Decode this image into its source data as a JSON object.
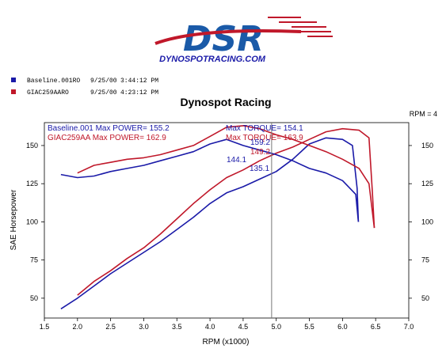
{
  "logo": {
    "text": "DSR",
    "url_text": "DYNOSPOTRACING.COM"
  },
  "legend": [
    {
      "name": "Baseline.001RO",
      "date": "9/25/00",
      "time": "3:44:12 PM",
      "color": "#1a1aa8"
    },
    {
      "name": "GIAC259AARO",
      "date": "9/25/00",
      "time": "4:23:12 PM",
      "color": "#c0182a"
    }
  ],
  "colors": {
    "blue": "#1a1aa8",
    "red": "#c0182a",
    "logo_blue": "#1a5aa8",
    "logo_red": "#c0182a"
  },
  "chart_data": {
    "type": "line",
    "title": "Dynospot Racing",
    "smoothing_label": "RPM = 4",
    "xlabel": "RPM (x1000)",
    "ylabel": "SAE Horsepower",
    "xlim": [
      1.5,
      7.0
    ],
    "ylim": [
      37,
      165
    ],
    "xticks": [
      "1.5",
      "2.0",
      "2.5",
      "3.0",
      "3.5",
      "4.0",
      "4.5",
      "5.0",
      "5.5",
      "6.0",
      "6.5",
      "7.0"
    ],
    "yticks": [
      "50",
      "75",
      "100",
      "125",
      "150"
    ],
    "grid": false,
    "cursor_rpm": 4.93,
    "readouts": [
      {
        "text": "Baseline.001  Max POWER= 155.2",
        "color": "#1a1aa8"
      },
      {
        "text": "GIAC259AA  Max POWER= 162.9",
        "color": "#c0182a"
      },
      {
        "text": "Max TORQUE= 154.1",
        "color": "#1a1aa8"
      },
      {
        "text": "Max TORQUE= 163.9",
        "color": "#c0182a"
      }
    ],
    "cursor_values": [
      {
        "text": "159.2",
        "color": "#1a1aa8"
      },
      {
        "text": "149.2",
        "color": "#c0182a"
      },
      {
        "text": "144.1",
        "color": "#1a1aa8"
      },
      {
        "text": "135.1",
        "color": "#1a1aa8"
      }
    ],
    "series": [
      {
        "kind": "power",
        "color": "#1a1aa8",
        "x": [
          1.75,
          2.0,
          2.25,
          2.5,
          2.75,
          3.0,
          3.25,
          3.5,
          3.75,
          4.0,
          4.25,
          4.5,
          4.75,
          5.0,
          5.25,
          5.5,
          5.75,
          6.0,
          6.15,
          6.22,
          6.24
        ],
        "y": [
          43,
          50,
          58,
          66,
          73,
          80,
          87,
          95,
          103,
          112,
          119,
          123,
          128,
          133,
          141,
          151,
          155,
          154,
          150,
          122,
          100
        ]
      },
      {
        "kind": "power",
        "color": "#c0182a",
        "x": [
          2.0,
          2.25,
          2.5,
          2.75,
          3.0,
          3.25,
          3.5,
          3.75,
          4.0,
          4.25,
          4.5,
          4.75,
          5.0,
          5.25,
          5.5,
          5.75,
          6.0,
          6.25,
          6.4,
          6.45,
          6.48
        ],
        "y": [
          52,
          61,
          68,
          76,
          83,
          92,
          102,
          112,
          121,
          129,
          134,
          140,
          145,
          149,
          154,
          159,
          161,
          160,
          155,
          120,
          96
        ]
      },
      {
        "kind": "torque",
        "color": "#1a1aa8",
        "x": [
          1.75,
          2.0,
          2.25,
          2.5,
          2.75,
          3.0,
          3.25,
          3.5,
          3.75,
          4.0,
          4.25,
          4.5,
          4.75,
          5.0,
          5.25,
          5.5,
          5.75,
          6.0,
          6.2,
          6.24
        ],
        "y": [
          131,
          129,
          130,
          133,
          135,
          137,
          140,
          143,
          146,
          151,
          154,
          150,
          147,
          144,
          140,
          135,
          132,
          127,
          118,
          100
        ]
      },
      {
        "kind": "torque",
        "color": "#c0182a",
        "x": [
          2.0,
          2.25,
          2.5,
          2.75,
          3.0,
          3.25,
          3.5,
          3.75,
          4.0,
          4.25,
          4.5,
          4.75,
          5.0,
          5.25,
          5.5,
          5.75,
          6.0,
          6.25,
          6.4,
          6.48
        ],
        "y": [
          132,
          137,
          139,
          141,
          142,
          144,
          147,
          150,
          156,
          162,
          163,
          161,
          157,
          154,
          150,
          146,
          141,
          135,
          125,
          96
        ]
      }
    ]
  }
}
